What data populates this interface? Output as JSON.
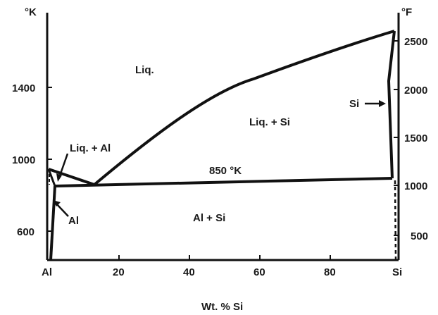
{
  "axes": {
    "left_unit": "°K",
    "right_unit": "°F",
    "x_label": "Wt. % Si",
    "x_ticks": [
      {
        "value": 0,
        "label": "Al"
      },
      {
        "value": 20,
        "label": "20"
      },
      {
        "value": 40,
        "label": "40"
      },
      {
        "value": 60,
        "label": "60"
      },
      {
        "value": 80,
        "label": "80"
      },
      {
        "value": 100,
        "label": "Si"
      }
    ],
    "left_ticks": [
      {
        "value": 600,
        "label": "600"
      },
      {
        "value": 1000,
        "label": "1000"
      },
      {
        "value": 1400,
        "label": "1400"
      }
    ],
    "right_ticks": [
      {
        "value": 500,
        "label": "500"
      },
      {
        "value": 1000,
        "label": "1000"
      },
      {
        "value": 1500,
        "label": "1500"
      },
      {
        "value": 2000,
        "label": "2000"
      },
      {
        "value": 2500,
        "label": "2500"
      }
    ]
  },
  "regions": {
    "liquid": "Liq.",
    "liquid_si": "Liq. + Si",
    "liquid_al": "Liq. + Al",
    "al": "Al",
    "al_si": "Al + Si",
    "si": "Si"
  },
  "annotations": {
    "eutectic": "850 °K"
  }
}
